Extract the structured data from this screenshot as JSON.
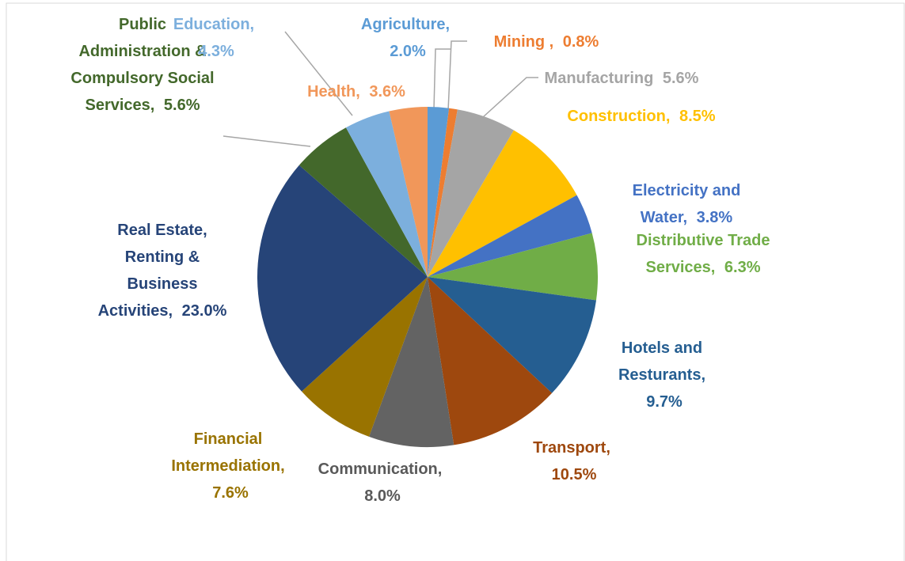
{
  "chart_data": {
    "type": "pie",
    "categories": [
      "Agriculture,",
      "Mining ,",
      "Manufacturing",
      "Construction,",
      "Electricity and Water,",
      "Distributive Trade Services,",
      "Hotels and Resturants,",
      "Transport,",
      "Communication,",
      "Financial Intermediation,",
      "Real Estate, Renting & Business Activities,",
      "Public Administration & Compulsory Social Services,",
      "Education,",
      "Health,"
    ],
    "values": [
      2.0,
      0.8,
      5.6,
      8.5,
      3.8,
      6.3,
      9.7,
      10.5,
      8.0,
      7.6,
      23.0,
      5.6,
      4.3,
      3.6
    ],
    "value_labels": [
      "2.0%",
      "0.8%",
      "5.6%",
      "8.5%",
      "3.8%",
      "6.3%",
      "9.7%",
      "10.5%",
      "8.0%",
      "7.6%",
      "23.0%",
      "5.6%",
      "4.3%",
      "3.6%"
    ],
    "colors": [
      "#5b9bd5",
      "#ed7d31",
      "#a5a5a5",
      "#ffc000",
      "#4472c4",
      "#70ad47",
      "#255e91",
      "#9e480e",
      "#636363",
      "#997300",
      "#264478",
      "#43682b",
      "#7cafdd",
      "#f1975a"
    ],
    "label_colors": [
      "#5b9bd5",
      "#ed7d31",
      "#a5a5a5",
      "#ffc000",
      "#4472c4",
      "#70ad47",
      "#255e91",
      "#9e480e",
      "#595959",
      "#997300",
      "#264478",
      "#43682b",
      "#7cafdd",
      "#f1975a"
    ]
  }
}
